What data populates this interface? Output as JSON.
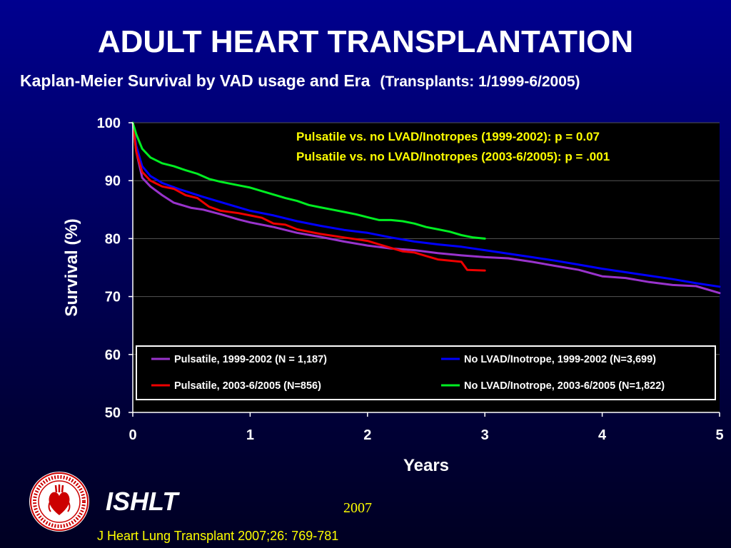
{
  "slide": {
    "title": "ADULT HEART TRANSPLANTATION",
    "subtitle": "Kaplan-Meier Survival by VAD usage and Era",
    "subtitle_era": "(Transplants: 1/1999-6/2005)",
    "org": "ISHLT",
    "year": "2007",
    "citation": "J Heart Lung Transplant 2007;26: 769-781",
    "logo_alt": "International Society for Heart & Lung Transplantation seal"
  },
  "colors": {
    "background_top": "#00008f",
    "plot_background": "#000000",
    "annotation": "#ffff00",
    "pulsatile_1999": "#9933cc",
    "pulsatile_2003": "#ee0000",
    "nolvad_1999": "#0000ff",
    "nolvad_2003": "#00ee22"
  },
  "chart_data": {
    "type": "line",
    "title": "",
    "xlabel": "Years",
    "ylabel": "Survival (%)",
    "xlim": [
      0,
      5
    ],
    "ylim": [
      50,
      100
    ],
    "xticks": [
      0,
      1,
      2,
      3,
      4,
      5
    ],
    "yticks": [
      50,
      60,
      70,
      80,
      90,
      100
    ],
    "grid": "horizontal",
    "legend_position": "bottom-inside",
    "annotations": [
      "Pulsatile vs. no LVAD/Inotropes (1999-2002): p = 0.07",
      "Pulsatile vs. no LVAD/Inotropes (2003-6/2005): p = .001"
    ],
    "series": [
      {
        "name": "Pulsatile, 1999-2002 (N = 1,187)",
        "color": "#9933cc",
        "x": [
          0,
          0.03,
          0.08,
          0.15,
          0.25,
          0.35,
          0.5,
          0.6,
          0.75,
          0.9,
          1.0,
          1.2,
          1.4,
          1.6,
          1.8,
          2.0,
          2.2,
          2.4,
          2.6,
          2.8,
          3.0,
          3.2,
          3.4,
          3.6,
          3.8,
          4.0,
          4.2,
          4.4,
          4.6,
          4.8,
          5.0
        ],
        "y": [
          100,
          95,
          90.5,
          89,
          87.5,
          86.2,
          85.3,
          85,
          84.2,
          83.3,
          82.8,
          82,
          81,
          80.3,
          79.5,
          78.8,
          78.3,
          78,
          77.5,
          77.1,
          76.8,
          76.6,
          76,
          75.3,
          74.6,
          73.5,
          73.2,
          72.5,
          72,
          71.8,
          70.6
        ]
      },
      {
        "name": "No LVAD/Inotrope, 1999-2002 (N=3,699)",
        "color": "#0000ff",
        "x": [
          0,
          0.03,
          0.08,
          0.15,
          0.25,
          0.4,
          0.6,
          0.8,
          1.0,
          1.2,
          1.4,
          1.6,
          1.8,
          2.0,
          2.2,
          2.4,
          2.6,
          2.8,
          3.0,
          3.2,
          3.4,
          3.6,
          3.8,
          4.0,
          4.2,
          4.4,
          4.6,
          4.8,
          5.0
        ],
        "y": [
          100,
          96,
          92.5,
          90.8,
          89.6,
          88.5,
          87.2,
          86,
          84.8,
          84,
          83,
          82.2,
          81.5,
          81,
          80.2,
          79.5,
          79,
          78.6,
          78,
          77.4,
          76.8,
          76.2,
          75.5,
          74.8,
          74.2,
          73.6,
          73,
          72.3,
          71.7
        ]
      },
      {
        "name": "Pulsatile, 2003-6/2005 (N=856)",
        "color": "#ee0000",
        "x": [
          0,
          0.03,
          0.08,
          0.15,
          0.25,
          0.35,
          0.45,
          0.55,
          0.65,
          0.75,
          0.9,
          1.0,
          1.1,
          1.2,
          1.3,
          1.4,
          1.5,
          1.6,
          1.8,
          2.0,
          2.1,
          2.2,
          2.3,
          2.4,
          2.5,
          2.6,
          2.7,
          2.8,
          2.85,
          3.0
        ],
        "y": [
          100,
          95,
          91.5,
          90,
          89,
          88.6,
          87.5,
          87,
          85.5,
          84.8,
          84.4,
          84,
          83.6,
          82.6,
          82.4,
          81.6,
          81.2,
          80.8,
          80.2,
          79.6,
          79,
          78.4,
          77.8,
          77.6,
          77,
          76.4,
          76.2,
          76,
          74.6,
          74.5
        ]
      },
      {
        "name": "No LVAD/Inotrope, 2003-6/2005 (N=1,822)",
        "color": "#00ee22",
        "x": [
          0,
          0.03,
          0.08,
          0.15,
          0.25,
          0.35,
          0.45,
          0.55,
          0.65,
          0.75,
          0.9,
          1.0,
          1.1,
          1.2,
          1.3,
          1.4,
          1.5,
          1.6,
          1.7,
          1.8,
          1.9,
          2.0,
          2.1,
          2.2,
          2.3,
          2.4,
          2.5,
          2.6,
          2.7,
          2.8,
          2.9,
          3.0
        ],
        "y": [
          100,
          98,
          95.5,
          94,
          93,
          92.5,
          91.8,
          91.2,
          90.3,
          89.8,
          89.2,
          88.8,
          88.2,
          87.6,
          87,
          86.5,
          85.8,
          85.4,
          85,
          84.6,
          84.2,
          83.7,
          83.2,
          83.2,
          83,
          82.6,
          82,
          81.6,
          81.2,
          80.6,
          80.2,
          80
        ]
      }
    ]
  }
}
